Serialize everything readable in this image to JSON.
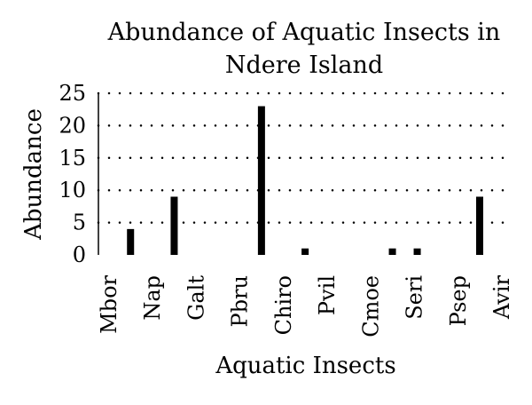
{
  "chart_data": {
    "type": "bar",
    "title_lines": [
      "Abundance of Aquatic Insects in",
      "Ndere Island"
    ],
    "xlabel": "Aquatic Insects",
    "ylabel": "Abundance",
    "categories": [
      "Mbor",
      "Nap",
      "Galt",
      "Pbru",
      "Chiro",
      "Pvil",
      "Cmoe",
      "Seri",
      "Psep",
      "Avir"
    ],
    "series": [
      {
        "values": [
          0,
          4,
          9,
          0,
          23,
          1,
          0,
          1,
          0,
          9
        ]
      },
      {
        "values": [
          0,
          0,
          0,
          0,
          0,
          0,
          0,
          1,
          0,
          0
        ]
      }
    ],
    "ylim": [
      0,
      25
    ],
    "yticks": [
      "0",
      "5",
      "10",
      "15",
      "20",
      "25"
    ],
    "grid": true,
    "bar_color": "#000000"
  }
}
